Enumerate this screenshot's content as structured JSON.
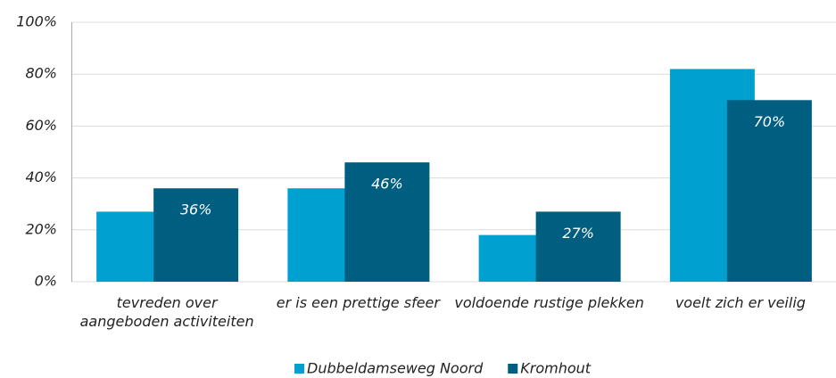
{
  "chart_data": {
    "type": "bar",
    "categories": [
      "tevreden over aangeboden activiteiten",
      "er is een prettige sfeer",
      "voldoende rustige plekken",
      "voelt zich er veilig"
    ],
    "series": [
      {
        "name": "Dubbeldamseweg Noord",
        "color": "#00a0d1",
        "values": [
          27,
          36,
          18,
          82
        ]
      },
      {
        "name": "Kromhout",
        "color": "#005f80",
        "values": [
          36,
          46,
          27,
          70
        ],
        "value_labels": [
          "36%",
          "46%",
          "27%",
          "70%"
        ]
      }
    ],
    "ylim": [
      0,
      100
    ],
    "yticks": [
      {
        "value": 0,
        "label": "0%"
      },
      {
        "value": 20,
        "label": "20%"
      },
      {
        "value": 40,
        "label": "40%"
      },
      {
        "value": 60,
        "label": "60%"
      },
      {
        "value": 80,
        "label": "80%"
      },
      {
        "value": 100,
        "label": "100%"
      }
    ],
    "grid": true,
    "legend": "bottom"
  }
}
